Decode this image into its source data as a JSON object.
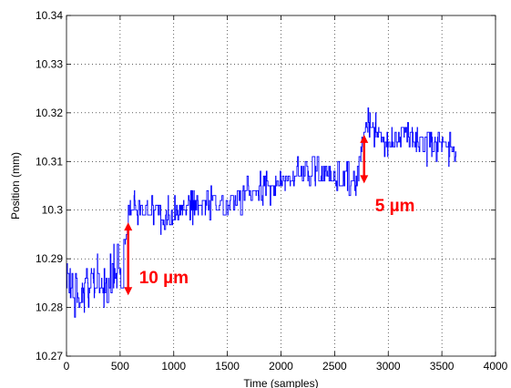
{
  "chart_data": {
    "type": "line",
    "title": "",
    "xlabel": "Time (samples)",
    "ylabel": "Position (mm)",
    "xlim": [
      0,
      4000
    ],
    "ylim": [
      10.27,
      10.34
    ],
    "xticks": [
      0,
      500,
      1000,
      1500,
      2000,
      2500,
      3000,
      3500,
      4000
    ],
    "xtick_labels": [
      "0",
      "500",
      "1000",
      "1500",
      "2000",
      "2500",
      "3000",
      "3500",
      "4000"
    ],
    "yticks": [
      10.27,
      10.28,
      10.29,
      10.3,
      10.31,
      10.32,
      10.33,
      10.34
    ],
    "ytick_labels": [
      "10.27",
      "10.28",
      "10.29",
      "10.3",
      "10.31",
      "10.32",
      "10.33",
      "10.34"
    ],
    "grid": true,
    "series": [
      {
        "color": "#0000ff",
        "trend": {
          "x": [
            0,
            100,
            200,
            300,
            400,
            500,
            560,
            600,
            700,
            800,
            900,
            1000,
            1100,
            1200,
            1300,
            1400,
            1500,
            1600,
            1700,
            1800,
            1900,
            2000,
            2100,
            2200,
            2300,
            2400,
            2500,
            2600,
            2700,
            2750,
            2800,
            2900,
            3000,
            3100,
            3200,
            3300,
            3400,
            3500,
            3600,
            3630
          ],
          "y": [
            10.2855,
            10.284,
            10.285,
            10.2845,
            10.285,
            10.2855,
            10.2955,
            10.2995,
            10.301,
            10.3,
            10.2985,
            10.2995,
            10.3005,
            10.3,
            10.301,
            10.3015,
            10.3005,
            10.3025,
            10.303,
            10.304,
            10.3045,
            10.3055,
            10.3065,
            10.3075,
            10.307,
            10.3075,
            10.307,
            10.3065,
            10.3065,
            10.3135,
            10.3175,
            10.3155,
            10.314,
            10.315,
            10.3145,
            10.314,
            10.3135,
            10.3135,
            10.3115,
            10.3105
          ]
        },
        "noise": [
          {
            "x_range": [
              0,
              550
            ],
            "amplitude": 0.006
          },
          {
            "x_range": [
              550,
              2750
            ],
            "amplitude": 0.0032
          },
          {
            "x_range": [
              2750,
              3630
            ],
            "amplitude": 0.0033
          }
        ]
      }
    ],
    "annotations": [
      {
        "text": "10 µm",
        "color": "#ff0000",
        "arrow": {
          "x": 575,
          "y_from": 10.2975,
          "y_to": 10.2825
        }
      },
      {
        "text": "5 µm",
        "color": "#ff0000",
        "arrow": {
          "x": 2775,
          "y_from": 10.3155,
          "y_to": 10.3055
        }
      }
    ]
  }
}
